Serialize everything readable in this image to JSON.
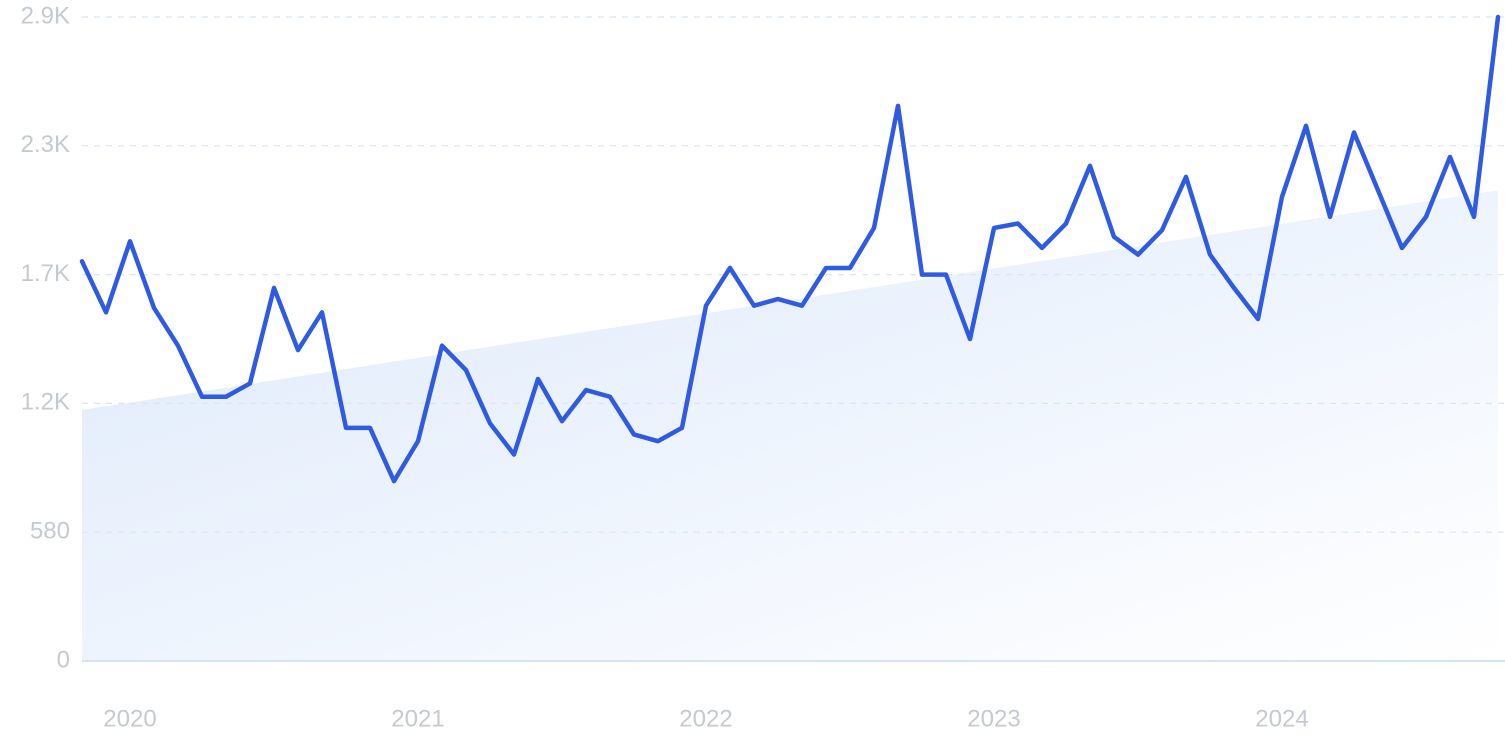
{
  "chart_data": {
    "type": "line",
    "categories": [
      null,
      null,
      "2020",
      null,
      null,
      null,
      null,
      null,
      null,
      null,
      null,
      null,
      null,
      null,
      "2021",
      null,
      null,
      null,
      null,
      null,
      null,
      null,
      null,
      null,
      null,
      null,
      "2022",
      null,
      null,
      null,
      null,
      null,
      null,
      null,
      null,
      null,
      null,
      null,
      "2023",
      null,
      null,
      null,
      null,
      null,
      null,
      null,
      null,
      null,
      null,
      null,
      "2024",
      null,
      null,
      null,
      null,
      null,
      null,
      null,
      null,
      null
    ],
    "series": [
      {
        "color": "#2f5be3",
        "values": [
          1800,
          1570,
          1890,
          1590,
          1420,
          1190,
          1190,
          1250,
          1680,
          1400,
          1570,
          1050,
          1050,
          810,
          990,
          1420,
          1310,
          1070,
          930,
          1270,
          1080,
          1220,
          1190,
          1020,
          990,
          1050,
          1600,
          1770,
          1600,
          1630,
          1600,
          1770,
          1770,
          1950,
          2500,
          1740,
          1740,
          1450,
          1950,
          1970,
          1860,
          1970,
          2230,
          1910,
          1830,
          1940,
          2180,
          1830,
          1680,
          1540,
          2090,
          2410,
          2000,
          2380,
          2120,
          1860,
          2000,
          2270,
          2000,
          2900
        ]
      }
    ],
    "trend": {
      "start": 1130,
      "end": 2120,
      "color": "#dde9fb"
    },
    "ylim": [
      0,
      2900
    ],
    "yticks": [
      0,
      580,
      {
        "value": 1160,
        "label": "1.2K"
      },
      {
        "value": 1740,
        "label": "1.7K"
      },
      {
        "value": 2320,
        "label": "2.3K"
      },
      {
        "value": 2900,
        "label": "2.9K"
      }
    ],
    "grid": true
  }
}
